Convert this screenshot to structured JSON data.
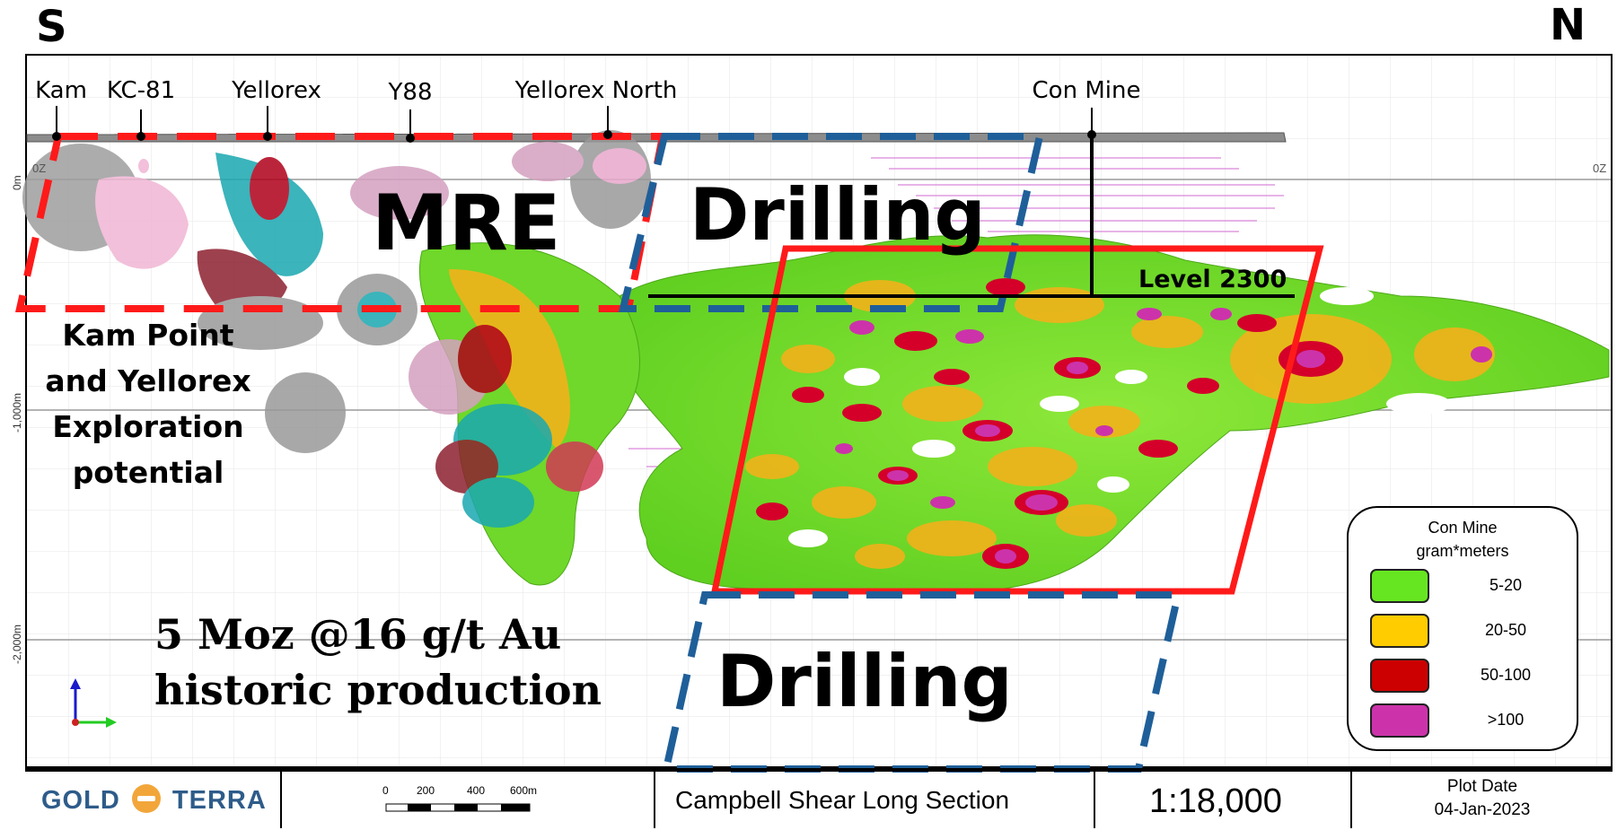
{
  "compass": {
    "south": "S",
    "north": "N"
  },
  "locations": [
    "Kam",
    "KC-81",
    "Yellorex",
    "Y88",
    "Yellorex North",
    "Con Mine"
  ],
  "depth_axis": {
    "zero": "0m",
    "minus1000": "-1,000m",
    "minus2000": "-2,000m"
  },
  "oz_left": "0Z",
  "oz_right": "0Z",
  "labels": {
    "mre": "MRE",
    "drilling_top": "Drilling",
    "drilling_bottom": "Drilling",
    "level": "Level 2300",
    "exploration": [
      "Kam Point",
      "and Yellorex",
      "Exploration",
      "potential"
    ],
    "production": [
      "5 Moz @16 g/t Au",
      "historic production"
    ]
  },
  "legend": {
    "title": [
      "Con Mine",
      "gram*meters"
    ],
    "items": [
      {
        "label": "5-20",
        "color": "#66e620"
      },
      {
        "label": "20-50",
        "color": "#ffcc00"
      },
      {
        "label": "50-100",
        "color": "#cc0000"
      },
      {
        "label": ">100",
        "color": "#cc33aa"
      }
    ]
  },
  "colors": {
    "mre_box": "#ff1a1a",
    "drilling_box": "#1f5f99",
    "con_mine_box": "#ff1a1a",
    "grade_5_20": "#66e620",
    "grade_20_50": "#ffcc00",
    "grade_50_100": "#cc0000",
    "grade_gt100": "#cc33aa"
  },
  "footer": {
    "logo_left": "GOLD",
    "logo_right": "TERRA",
    "scale_ticks": [
      "0",
      "200",
      "400",
      "600m"
    ],
    "section_title": "Campbell Shear Long Section",
    "scale": "1:18,000",
    "plot_date_label": "Plot Date",
    "plot_date": "04-Jan-2023"
  }
}
